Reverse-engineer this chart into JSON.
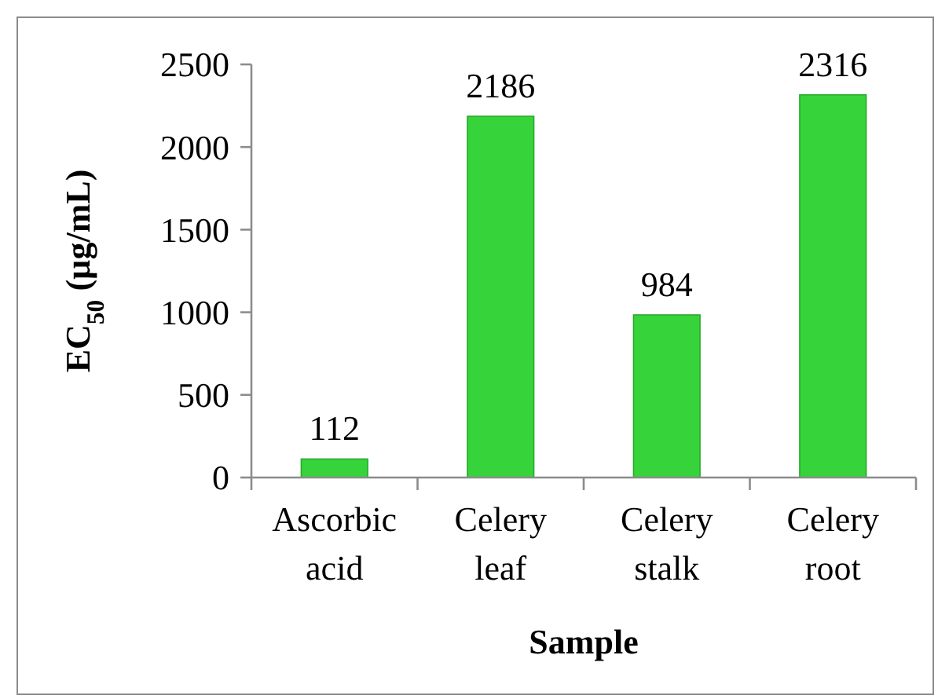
{
  "chart_data": {
    "type": "bar",
    "categories": [
      "Ascorbic acid",
      "Celery leaf",
      "Celery stalk",
      "Celery root"
    ],
    "values": [
      112,
      2186,
      984,
      2316
    ],
    "color": "#36d43a",
    "xlabel": "Sample",
    "ylabel": "EC$_{50}$ (µg/mL)",
    "ylim": [
      0,
      2500
    ],
    "yticks": [
      0,
      500,
      1000,
      1500,
      2000,
      2500
    ],
    "data_labels": true
  }
}
